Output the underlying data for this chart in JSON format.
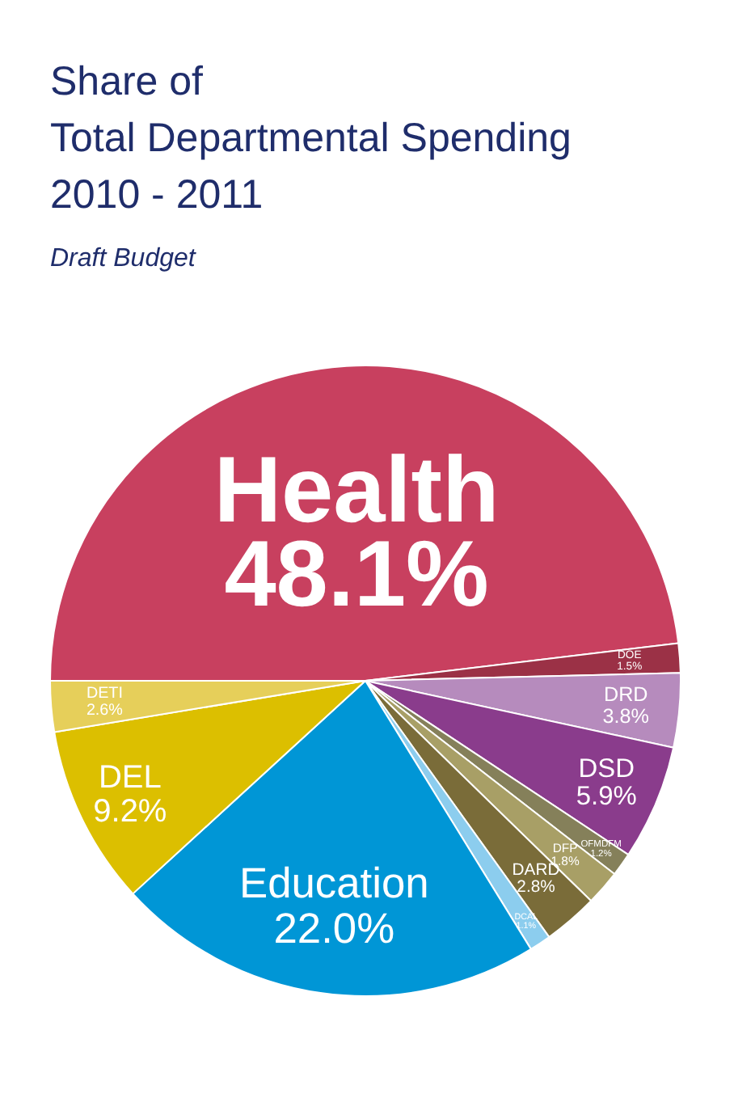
{
  "chart_data": {
    "type": "pie",
    "title": "Share of\nTotal Departmental Spending\n2010 - 2011",
    "subtitle": "Draft Budget",
    "categories": [
      "Health",
      "DOE",
      "DRD",
      "DSD",
      "OFMDFM",
      "DFP",
      "DARD",
      "DCAL",
      "Education",
      "DEL",
      "DETI"
    ],
    "values": [
      48.1,
      1.5,
      3.8,
      5.9,
      1.2,
      1.8,
      2.8,
      1.1,
      22.0,
      9.2,
      2.6
    ],
    "value_labels": [
      "48.1%",
      "1.5%",
      "3.8%",
      "5.9%",
      "1.2%",
      "1.8%",
      "2.8%",
      "1.1%",
      "22.0%",
      "9.2%",
      "2.6%"
    ],
    "colors": [
      "#c8405f",
      "#9b3146",
      "#b68bbd",
      "#8a3c8c",
      "#85805a",
      "#a89f66",
      "#7a6c39",
      "#8ccdee",
      "#0096d6",
      "#dcbf00",
      "#e6cf5a"
    ]
  }
}
